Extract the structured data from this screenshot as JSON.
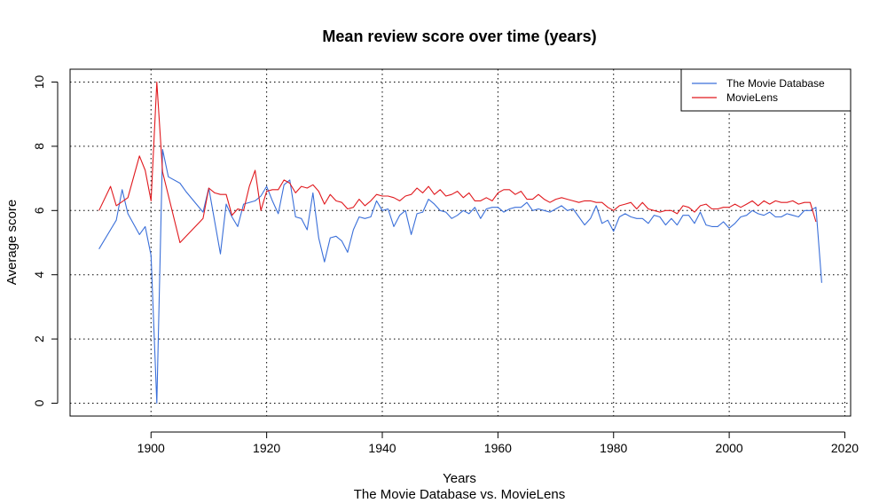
{
  "chart_data": {
    "type": "line",
    "title": "Mean review score over time (years)",
    "xlabel": "Years",
    "subtitle": "The Movie Database vs. MovieLens",
    "ylabel": "Average score",
    "xlim": [
      1886,
      2021
    ],
    "ylim": [
      -0.4,
      10.4
    ],
    "xticks": [
      1900,
      1920,
      1940,
      1960,
      1980,
      2000,
      2020
    ],
    "yticks": [
      0,
      2,
      4,
      6,
      8,
      10
    ],
    "grid": "dotted",
    "legend_position": "top-right",
    "series": [
      {
        "name": "The Movie Database",
        "color": "#3a6fd9",
        "points": [
          [
            1891,
            4.8
          ],
          [
            1894,
            5.7
          ],
          [
            1895,
            6.65
          ],
          [
            1896,
            5.9
          ],
          [
            1898,
            5.25
          ],
          [
            1899,
            5.5
          ],
          [
            1900,
            4.6
          ],
          [
            1901,
            0.0
          ],
          [
            1902,
            7.9
          ],
          [
            1903,
            7.05
          ],
          [
            1905,
            6.85
          ],
          [
            1906,
            6.6
          ],
          [
            1909,
            5.95
          ],
          [
            1910,
            6.7
          ],
          [
            1912,
            4.65
          ],
          [
            1913,
            6.2
          ],
          [
            1914,
            5.8
          ],
          [
            1915,
            5.5
          ],
          [
            1916,
            6.2
          ],
          [
            1918,
            6.3
          ],
          [
            1919,
            6.45
          ],
          [
            1920,
            6.75
          ],
          [
            1921,
            6.3
          ],
          [
            1922,
            5.9
          ],
          [
            1923,
            6.8
          ],
          [
            1924,
            6.95
          ],
          [
            1925,
            5.8
          ],
          [
            1926,
            5.75
          ],
          [
            1927,
            5.4
          ],
          [
            1928,
            6.55
          ],
          [
            1929,
            5.15
          ],
          [
            1930,
            4.4
          ],
          [
            1931,
            5.15
          ],
          [
            1932,
            5.2
          ],
          [
            1933,
            5.05
          ],
          [
            1934,
            4.7
          ],
          [
            1935,
            5.4
          ],
          [
            1936,
            5.8
          ],
          [
            1937,
            5.75
          ],
          [
            1938,
            5.8
          ],
          [
            1939,
            6.3
          ],
          [
            1940,
            6.0
          ],
          [
            1941,
            6.05
          ],
          [
            1942,
            5.5
          ],
          [
            1943,
            5.85
          ],
          [
            1944,
            6.0
          ],
          [
            1945,
            5.25
          ],
          [
            1946,
            5.9
          ],
          [
            1947,
            5.95
          ],
          [
            1948,
            6.35
          ],
          [
            1949,
            6.2
          ],
          [
            1950,
            6.0
          ],
          [
            1951,
            5.95
          ],
          [
            1952,
            5.75
          ],
          [
            1953,
            5.85
          ],
          [
            1954,
            6.0
          ],
          [
            1955,
            5.9
          ],
          [
            1956,
            6.1
          ],
          [
            1957,
            5.75
          ],
          [
            1958,
            6.05
          ],
          [
            1959,
            6.1
          ],
          [
            1960,
            6.1
          ],
          [
            1961,
            5.95
          ],
          [
            1962,
            6.05
          ],
          [
            1963,
            6.1
          ],
          [
            1964,
            6.1
          ],
          [
            1965,
            6.25
          ],
          [
            1966,
            6.0
          ],
          [
            1967,
            6.05
          ],
          [
            1968,
            6.0
          ],
          [
            1969,
            5.95
          ],
          [
            1970,
            6.05
          ],
          [
            1971,
            6.15
          ],
          [
            1972,
            6.0
          ],
          [
            1973,
            6.05
          ],
          [
            1974,
            5.8
          ],
          [
            1975,
            5.55
          ],
          [
            1976,
            5.75
          ],
          [
            1977,
            6.15
          ],
          [
            1978,
            5.6
          ],
          [
            1979,
            5.7
          ],
          [
            1980,
            5.35
          ],
          [
            1981,
            5.8
          ],
          [
            1982,
            5.9
          ],
          [
            1983,
            5.8
          ],
          [
            1984,
            5.75
          ],
          [
            1985,
            5.75
          ],
          [
            1986,
            5.6
          ],
          [
            1987,
            5.85
          ],
          [
            1988,
            5.8
          ],
          [
            1989,
            5.55
          ],
          [
            1990,
            5.75
          ],
          [
            1991,
            5.55
          ],
          [
            1992,
            5.85
          ],
          [
            1993,
            5.85
          ],
          [
            1994,
            5.6
          ],
          [
            1995,
            5.95
          ],
          [
            1996,
            5.55
          ],
          [
            1997,
            5.5
          ],
          [
            1998,
            5.5
          ],
          [
            1999,
            5.65
          ],
          [
            2000,
            5.45
          ],
          [
            2001,
            5.6
          ],
          [
            2002,
            5.8
          ],
          [
            2003,
            5.85
          ],
          [
            2004,
            6.0
          ],
          [
            2005,
            5.9
          ],
          [
            2006,
            5.85
          ],
          [
            2007,
            5.95
          ],
          [
            2008,
            5.8
          ],
          [
            2009,
            5.8
          ],
          [
            2010,
            5.9
          ],
          [
            2011,
            5.85
          ],
          [
            2012,
            5.8
          ],
          [
            2013,
            6.0
          ],
          [
            2014,
            6.0
          ],
          [
            2015,
            6.1
          ],
          [
            2016,
            3.75
          ]
        ]
      },
      {
        "name": "MovieLens",
        "color": "#e0191e",
        "points": [
          [
            1891,
            6.0
          ],
          [
            1893,
            6.75
          ],
          [
            1894,
            6.15
          ],
          [
            1896,
            6.4
          ],
          [
            1898,
            7.7
          ],
          [
            1899,
            7.25
          ],
          [
            1900,
            6.3
          ],
          [
            1901,
            10.0
          ],
          [
            1902,
            7.2
          ],
          [
            1905,
            5.0
          ],
          [
            1909,
            5.75
          ],
          [
            1910,
            6.7
          ],
          [
            1911,
            6.55
          ],
          [
            1912,
            6.5
          ],
          [
            1913,
            6.5
          ],
          [
            1914,
            5.85
          ],
          [
            1915,
            6.05
          ],
          [
            1916,
            6.0
          ],
          [
            1917,
            6.75
          ],
          [
            1918,
            7.25
          ],
          [
            1919,
            6.0
          ],
          [
            1920,
            6.6
          ],
          [
            1921,
            6.65
          ],
          [
            1922,
            6.65
          ],
          [
            1923,
            6.95
          ],
          [
            1924,
            6.85
          ],
          [
            1925,
            6.55
          ],
          [
            1926,
            6.75
          ],
          [
            1927,
            6.7
          ],
          [
            1928,
            6.8
          ],
          [
            1929,
            6.6
          ],
          [
            1930,
            6.2
          ],
          [
            1931,
            6.5
          ],
          [
            1932,
            6.3
          ],
          [
            1933,
            6.25
          ],
          [
            1934,
            6.05
          ],
          [
            1935,
            6.1
          ],
          [
            1936,
            6.35
          ],
          [
            1937,
            6.15
          ],
          [
            1938,
            6.3
          ],
          [
            1939,
            6.5
          ],
          [
            1940,
            6.45
          ],
          [
            1941,
            6.45
          ],
          [
            1942,
            6.4
          ],
          [
            1943,
            6.3
          ],
          [
            1944,
            6.45
          ],
          [
            1945,
            6.5
          ],
          [
            1946,
            6.7
          ],
          [
            1947,
            6.55
          ],
          [
            1948,
            6.75
          ],
          [
            1949,
            6.5
          ],
          [
            1950,
            6.65
          ],
          [
            1951,
            6.45
          ],
          [
            1952,
            6.5
          ],
          [
            1953,
            6.6
          ],
          [
            1954,
            6.4
          ],
          [
            1955,
            6.55
          ],
          [
            1956,
            6.3
          ],
          [
            1957,
            6.3
          ],
          [
            1958,
            6.4
          ],
          [
            1959,
            6.3
          ],
          [
            1960,
            6.55
          ],
          [
            1961,
            6.65
          ],
          [
            1962,
            6.65
          ],
          [
            1963,
            6.5
          ],
          [
            1964,
            6.6
          ],
          [
            1965,
            6.35
          ],
          [
            1966,
            6.35
          ],
          [
            1967,
            6.5
          ],
          [
            1968,
            6.35
          ],
          [
            1969,
            6.25
          ],
          [
            1970,
            6.35
          ],
          [
            1971,
            6.4
          ],
          [
            1972,
            6.35
          ],
          [
            1973,
            6.3
          ],
          [
            1974,
            6.25
          ],
          [
            1975,
            6.3
          ],
          [
            1976,
            6.3
          ],
          [
            1977,
            6.25
          ],
          [
            1978,
            6.25
          ],
          [
            1979,
            6.1
          ],
          [
            1980,
            6.0
          ],
          [
            1981,
            6.15
          ],
          [
            1982,
            6.2
          ],
          [
            1983,
            6.25
          ],
          [
            1984,
            6.05
          ],
          [
            1985,
            6.25
          ],
          [
            1986,
            6.05
          ],
          [
            1987,
            6.0
          ],
          [
            1988,
            5.95
          ],
          [
            1989,
            6.0
          ],
          [
            1990,
            6.0
          ],
          [
            1991,
            5.9
          ],
          [
            1992,
            6.15
          ],
          [
            1993,
            6.1
          ],
          [
            1994,
            5.95
          ],
          [
            1995,
            6.15
          ],
          [
            1996,
            6.2
          ],
          [
            1997,
            6.05
          ],
          [
            1998,
            6.05
          ],
          [
            1999,
            6.1
          ],
          [
            2000,
            6.1
          ],
          [
            2001,
            6.2
          ],
          [
            2002,
            6.1
          ],
          [
            2003,
            6.2
          ],
          [
            2004,
            6.3
          ],
          [
            2005,
            6.15
          ],
          [
            2006,
            6.3
          ],
          [
            2007,
            6.2
          ],
          [
            2008,
            6.3
          ],
          [
            2009,
            6.25
          ],
          [
            2010,
            6.25
          ],
          [
            2011,
            6.3
          ],
          [
            2012,
            6.2
          ],
          [
            2013,
            6.25
          ],
          [
            2014,
            6.25
          ],
          [
            2015,
            5.65
          ]
        ]
      }
    ]
  }
}
